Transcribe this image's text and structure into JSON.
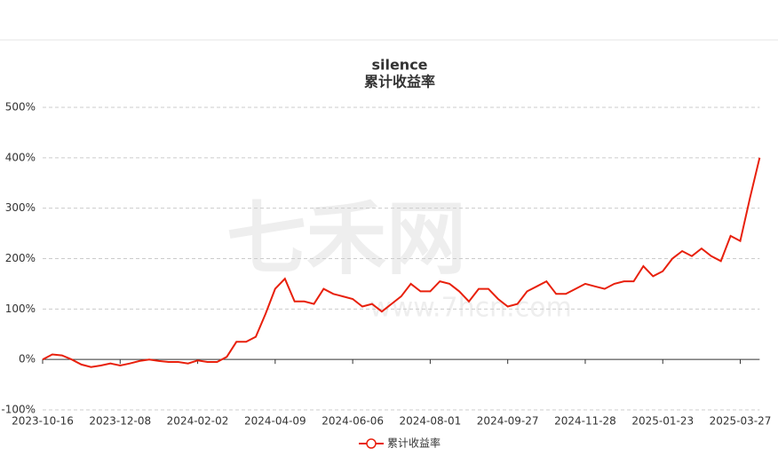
{
  "chart_data": {
    "type": "line",
    "title": "silence",
    "subtitle": "累计收益率",
    "watermark": "七禾网",
    "watermark_url": "www.7hcn.com",
    "categories": [
      "2023-10-16",
      null,
      null,
      null,
      null,
      null,
      null,
      null,
      "2023-12-08",
      null,
      null,
      null,
      null,
      null,
      null,
      null,
      "2024-02-02",
      null,
      null,
      null,
      null,
      null,
      null,
      null,
      "2024-04-09",
      null,
      null,
      null,
      null,
      null,
      null,
      null,
      "2024-06-06",
      null,
      null,
      null,
      null,
      null,
      null,
      null,
      "2024-08-01",
      null,
      null,
      null,
      null,
      null,
      null,
      null,
      "2024-09-27",
      null,
      null,
      null,
      null,
      null,
      null,
      null,
      "2024-11-28",
      null,
      null,
      null,
      null,
      null,
      null,
      null,
      "2025-01-23",
      null,
      null,
      null,
      null,
      null,
      null,
      null,
      "2025-03-27",
      null,
      null
    ],
    "series": [
      {
        "name": "累计收益率",
        "color": "#e8200c",
        "values": [
          0,
          10,
          8,
          0,
          -10,
          -15,
          -12,
          -8,
          -12,
          -8,
          -3,
          0,
          -3,
          -5,
          -5,
          -8,
          -2,
          -5,
          -5,
          5,
          35,
          35,
          45,
          90,
          140,
          160,
          115,
          115,
          110,
          140,
          130,
          125,
          120,
          105,
          110,
          95,
          110,
          125,
          150,
          135,
          135,
          155,
          150,
          135,
          115,
          140,
          140,
          120,
          105,
          110,
          135,
          145,
          155,
          130,
          130,
          140,
          150,
          145,
          140,
          150,
          155,
          155,
          185,
          165,
          175,
          200,
          215,
          205,
          220,
          205,
          195,
          245,
          235,
          320,
          400
        ]
      }
    ],
    "ylim": [
      -100,
      500
    ],
    "yticks": [
      {
        "value": -100,
        "label": "-100%"
      },
      {
        "value": 0,
        "label": "0%"
      },
      {
        "value": 100,
        "label": "100%"
      },
      {
        "value": 200,
        "label": "200%"
      },
      {
        "value": 300,
        "label": "300%"
      },
      {
        "value": 400,
        "label": "400%"
      },
      {
        "value": 500,
        "label": "500%"
      }
    ],
    "grid": true,
    "legend": "bottom"
  }
}
